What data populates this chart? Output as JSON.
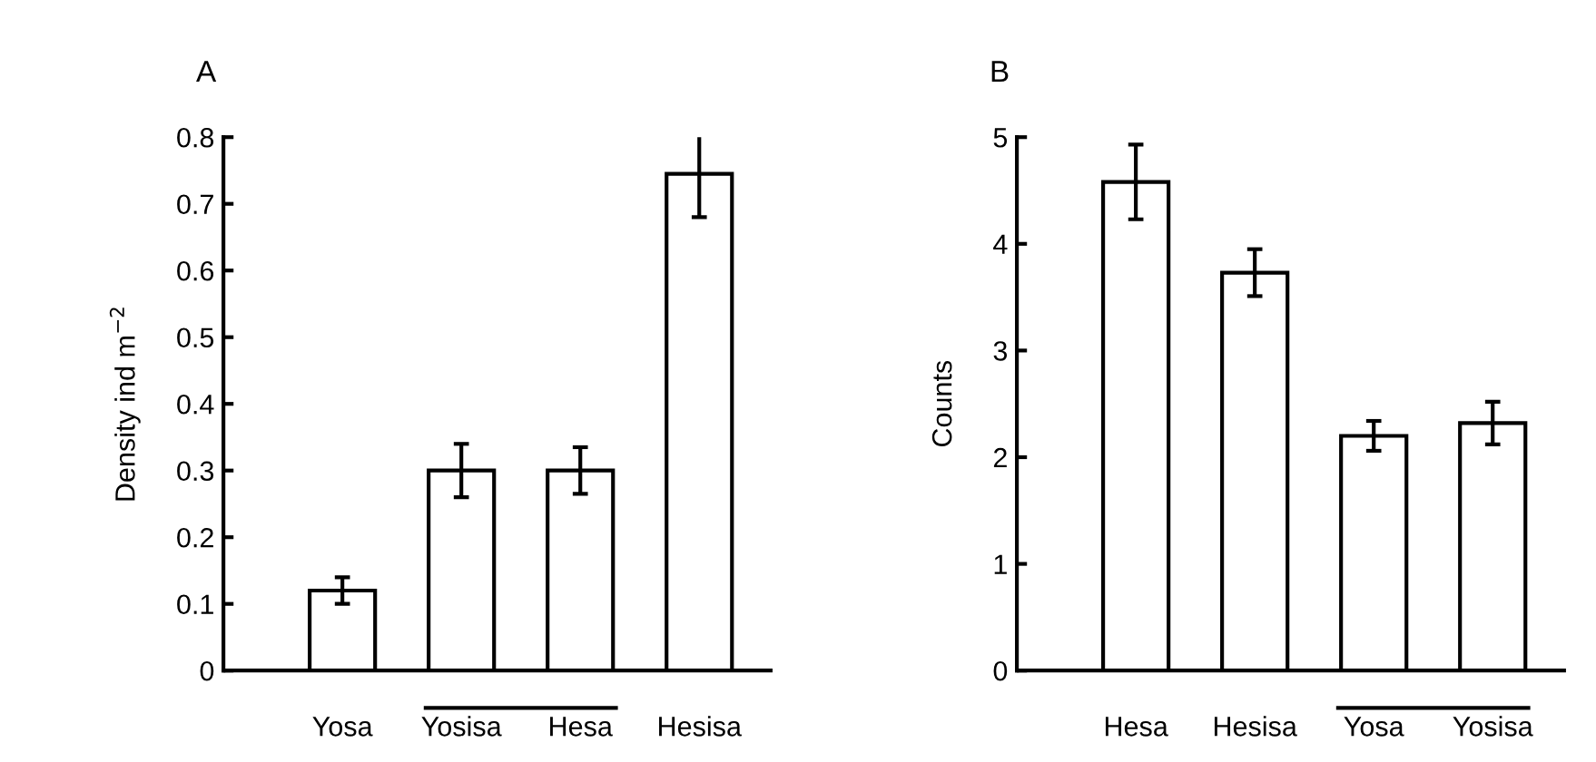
{
  "chart_data": [
    {
      "type": "bar",
      "title": "A",
      "ylabel": "Density ind m$^{−2}$",
      "categories": [
        "Yosa",
        "Yosisa",
        "Hesa",
        "Hesisa"
      ],
      "values": [
        0.12,
        0.3,
        0.3,
        0.745
      ],
      "errors": [
        0.02,
        0.04,
        0.035,
        0.065
      ],
      "color": "#ffffff",
      "ylim": [
        0,
        0.8
      ],
      "yticks": [
        0,
        0.1,
        0.2,
        0.3,
        0.4,
        0.5,
        0.6,
        0.7,
        0.8
      ],
      "grid": false,
      "legend": false
    },
    {
      "type": "bar",
      "title": "B",
      "ylabel": "Counts",
      "categories": [
        "Hesa",
        "Hesisa",
        "Yosa",
        "Yosisa"
      ],
      "values": [
        4.58,
        3.73,
        2.2,
        2.32
      ],
      "errors": [
        0.35,
        0.22,
        0.14,
        0.2
      ],
      "color": "#ffffff",
      "ylim": [
        0,
        5
      ],
      "yticks": [
        0,
        1,
        2,
        3,
        4,
        5
      ],
      "grid": false,
      "legend": false
    }
  ]
}
